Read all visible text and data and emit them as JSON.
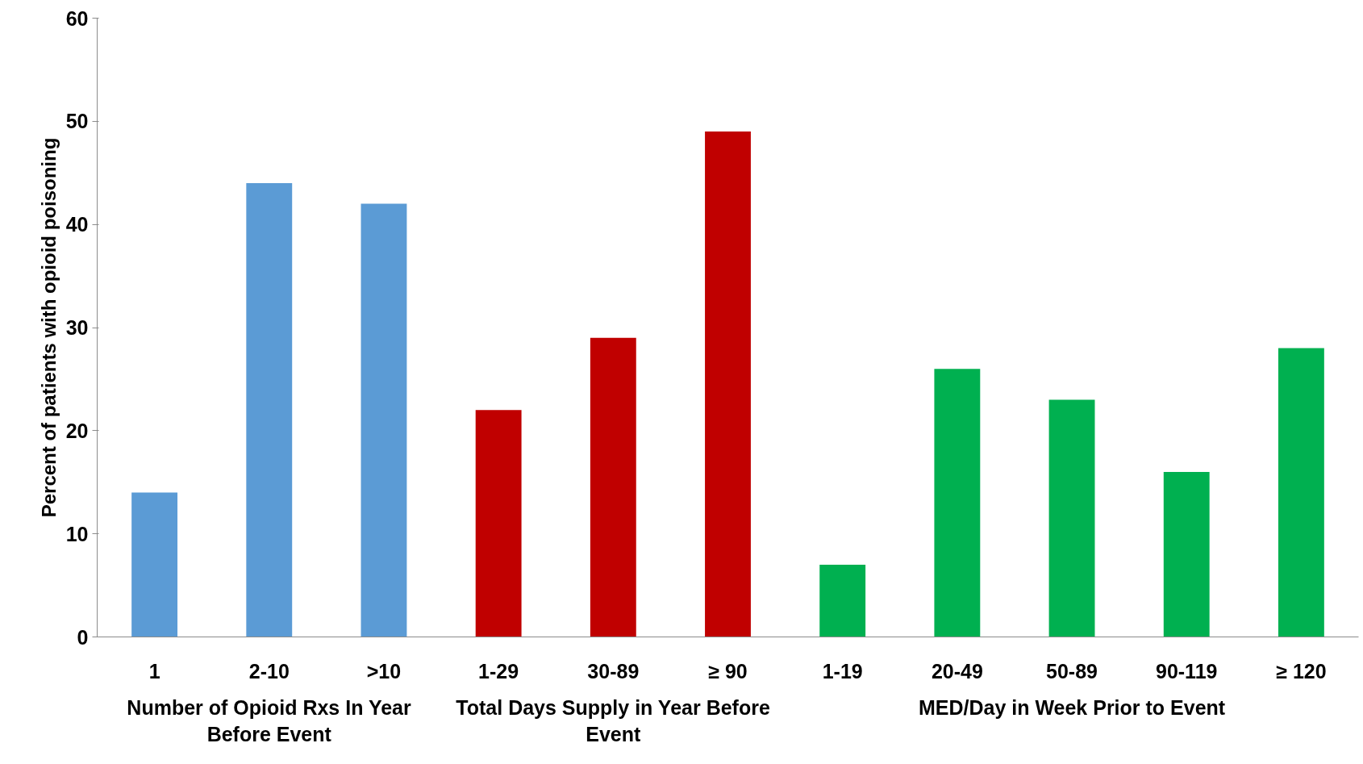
{
  "chart_data": {
    "type": "bar",
    "ylabel": "Percent of patients with opioid poisoning",
    "categories": [
      "1",
      "2-10",
      ">10",
      "1-29",
      "30-89",
      "≥ 90",
      "1-19",
      "20-49",
      "50-89",
      "90-119",
      "≥ 120"
    ],
    "values": [
      14,
      44,
      42,
      22,
      29,
      49,
      7,
      26,
      23,
      16,
      28
    ],
    "colors": [
      "#5b9bd5",
      "#5b9bd5",
      "#5b9bd5",
      "#c00000",
      "#c00000",
      "#c00000",
      "#00b050",
      "#00b050",
      "#00b050",
      "#00b050",
      "#00b050"
    ],
    "annotations": [
      "Number of Opioid Rxs In Year Before Event",
      "Total Days Supply in Year Before Event",
      "MED/Day in Week Prior to Event"
    ],
    "ylim": [
      0,
      60
    ],
    "yticks": [
      0,
      10,
      20,
      30,
      40,
      50,
      60
    ],
    "grid": false
  }
}
